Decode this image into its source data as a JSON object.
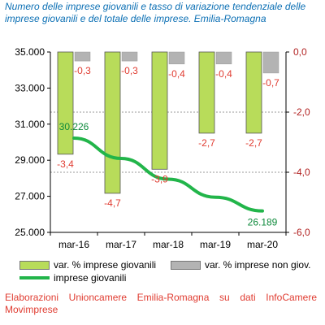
{
  "title": "Numero delle imprese giovanili e tasso di variazione tendenziale delle imprese giovanili e del totale delle imprese. Emilia-Romagna",
  "source_note": "Elaborazioni Unioncamere Emilia-Romagna su dati InfoCamere Movimprese",
  "colors": {
    "title": "#0b6fb4",
    "bar_giovani": "#b8dc5a",
    "bar_non_giov": "#b3b3b3",
    "line_giovani": "#22b54a",
    "data_label_red": "#e03c31",
    "line_label_green": "#0f8a3c"
  },
  "legend": {
    "items": [
      {
        "label": "var. % imprese giovanili",
        "color": "#b8dc5a",
        "icon": "box"
      },
      {
        "label": "var. % imprese non giov.",
        "color": "#b3b3b3",
        "icon": "box"
      },
      {
        "label": "imprese giovanili",
        "color": "#22b54a",
        "icon": "line"
      }
    ]
  },
  "chart_data": {
    "type": "bar",
    "title": "Numero delle imprese giovanili e tasso di variazione tendenziale delle imprese giovanili e del totale delle imprese. Emilia-Romagna",
    "categories": [
      "mar-16",
      "mar-17",
      "mar-18",
      "mar-19",
      "mar-20"
    ],
    "y_left": {
      "min": 25000,
      "max": 35000,
      "ticks": [
        25000,
        27000,
        29000,
        31000,
        33000,
        35000
      ],
      "tick_labels": [
        "25.000",
        "27.000",
        "29.000",
        "31.000",
        "33.000",
        "35.000"
      ]
    },
    "y_right": {
      "min": -6.0,
      "max": 0.0,
      "ticks": [
        -6.0,
        -4.0,
        -2.0,
        0.0
      ],
      "tick_labels": [
        "-6,0",
        "-4,0",
        "-2,0",
        "0,0"
      ]
    },
    "gridlines": "right-axis dashed at -2,0 and -4,0",
    "legend_position": "bottom",
    "series": [
      {
        "name": "var. % imprese giovanili",
        "type": "bar",
        "axis": "right",
        "values": [
          -3.4,
          -4.7,
          -3.9,
          -2.7,
          -2.7
        ],
        "labels": [
          "-3,4",
          "-4,7",
          "-3,9",
          "-2,7",
          "-2,7"
        ]
      },
      {
        "name": "var. % imprese non giov.",
        "type": "bar",
        "axis": "right",
        "values": [
          -0.3,
          -0.3,
          -0.4,
          -0.4,
          -0.7
        ],
        "labels": [
          "-0,3",
          "-0,3",
          "-0,4",
          "-0,4",
          "-0,7"
        ]
      },
      {
        "name": "imprese giovanili",
        "type": "line",
        "axis": "left",
        "values": [
          30226,
          29100,
          27950,
          26950,
          26189
        ],
        "labels": [
          "30.226",
          "",
          "",
          "",
          "26.189"
        ]
      }
    ]
  }
}
